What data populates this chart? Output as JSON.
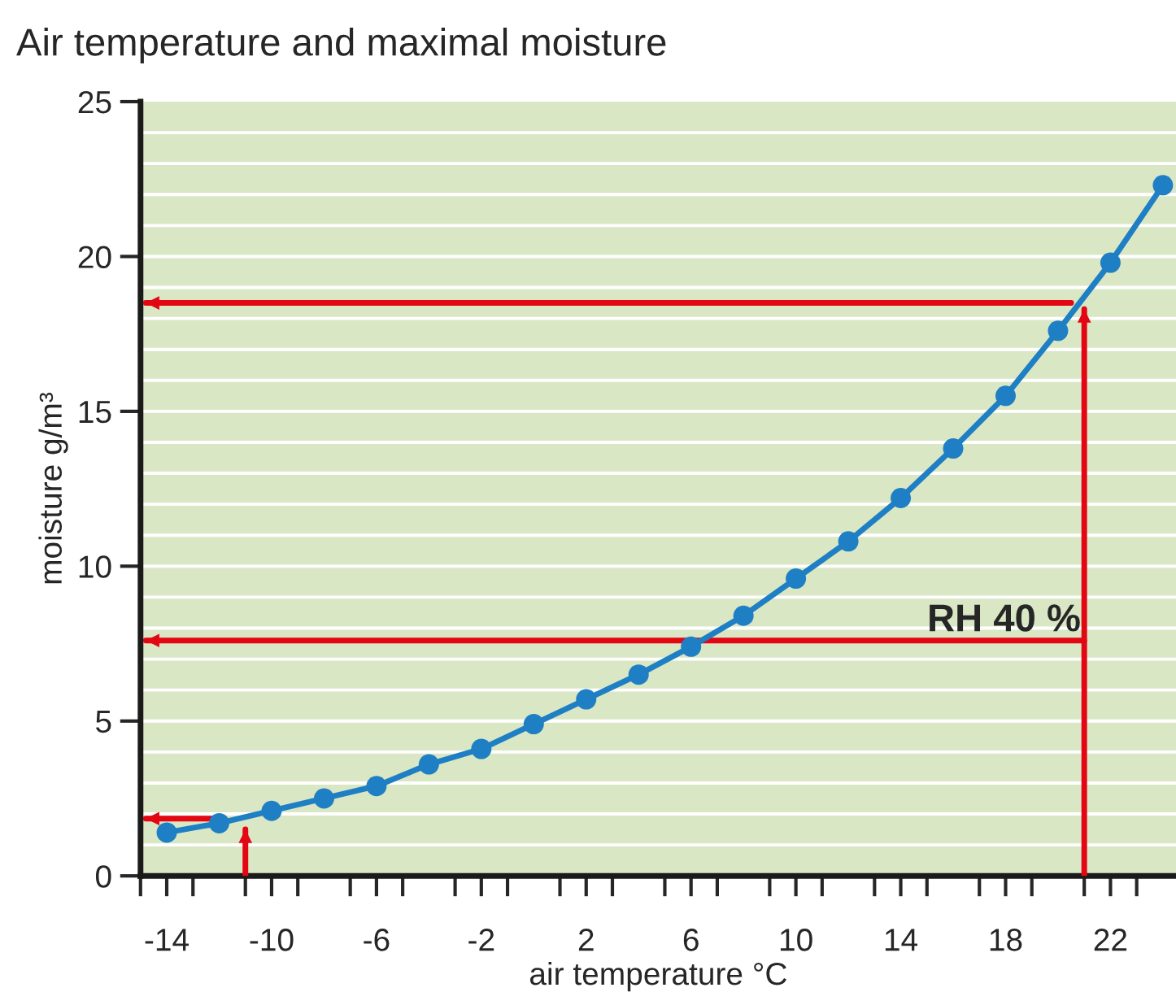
{
  "chart_data": {
    "type": "line",
    "title": "Air temperature and maximal moisture",
    "xlabel": "air temperature °C",
    "ylabel": "moisture g/m³",
    "xlim": [
      -15,
      24.5
    ],
    "ylim": [
      0,
      25
    ],
    "xticks": [
      {
        "value": -15,
        "label": null
      },
      {
        "value": -14,
        "label": "-14"
      },
      {
        "value": -13,
        "label": null
      },
      {
        "value": -11,
        "label": null
      },
      {
        "value": -10,
        "label": "-10"
      },
      {
        "value": -9,
        "label": null
      },
      {
        "value": -7,
        "label": null
      },
      {
        "value": -6,
        "label": "-6"
      },
      {
        "value": -5,
        "label": null
      },
      {
        "value": -3,
        "label": null
      },
      {
        "value": -2,
        "label": "-2"
      },
      {
        "value": -1,
        "label": null
      },
      {
        "value": 1,
        "label": null
      },
      {
        "value": 2,
        "label": "2"
      },
      {
        "value": 3,
        "label": null
      },
      {
        "value": 5,
        "label": null
      },
      {
        "value": 6,
        "label": "6"
      },
      {
        "value": 7,
        "label": null
      },
      {
        "value": 9,
        "label": null
      },
      {
        "value": 10,
        "label": "10"
      },
      {
        "value": 11,
        "label": null
      },
      {
        "value": 13,
        "label": null
      },
      {
        "value": 14,
        "label": "14"
      },
      {
        "value": 15,
        "label": null
      },
      {
        "value": 17,
        "label": null
      },
      {
        "value": 18,
        "label": "18"
      },
      {
        "value": 19,
        "label": null
      },
      {
        "value": 21,
        "label": null
      },
      {
        "value": 22,
        "label": "22"
      },
      {
        "value": 23,
        "label": null
      }
    ],
    "yticks": [
      0,
      5,
      10,
      15,
      20,
      25
    ],
    "grid": "y",
    "series": [
      {
        "color": "#1f7fc4",
        "marker": "circle",
        "x": [
          -14,
          -12,
          -10,
          -8,
          -6,
          -4,
          -2,
          0,
          2,
          4,
          6,
          8,
          10,
          12,
          14,
          16,
          18,
          20,
          22,
          24
        ],
        "values": [
          1.4,
          1.7,
          2.1,
          2.5,
          2.9,
          3.6,
          4.1,
          4.9,
          5.7,
          6.5,
          7.4,
          8.4,
          9.6,
          10.8,
          12.2,
          13.8,
          15.5,
          17.6,
          19.8,
          22.3
        ]
      },
      {
        "color": "#e30613",
        "marker": "none",
        "x": [
          20.5,
          -14.8
        ],
        "values": [
          18.5,
          18.5
        ]
      },
      {
        "color": "#e30613",
        "marker": "none",
        "x": [
          21,
          21
        ],
        "values": [
          0,
          18.3
        ]
      },
      {
        "color": "#e30613",
        "marker": "none",
        "x": [
          21,
          -14.8
        ],
        "values": [
          7.6,
          7.6
        ]
      },
      {
        "color": "#e30613",
        "marker": "none",
        "x": [
          -12.2,
          -14.8
        ],
        "values": [
          1.85,
          1.85
        ]
      },
      {
        "color": "#e30613",
        "marker": "none",
        "x": [
          -11,
          -11
        ],
        "values": [
          0,
          1.5
        ]
      }
    ],
    "annotations": [
      "RH 40 %"
    ]
  }
}
